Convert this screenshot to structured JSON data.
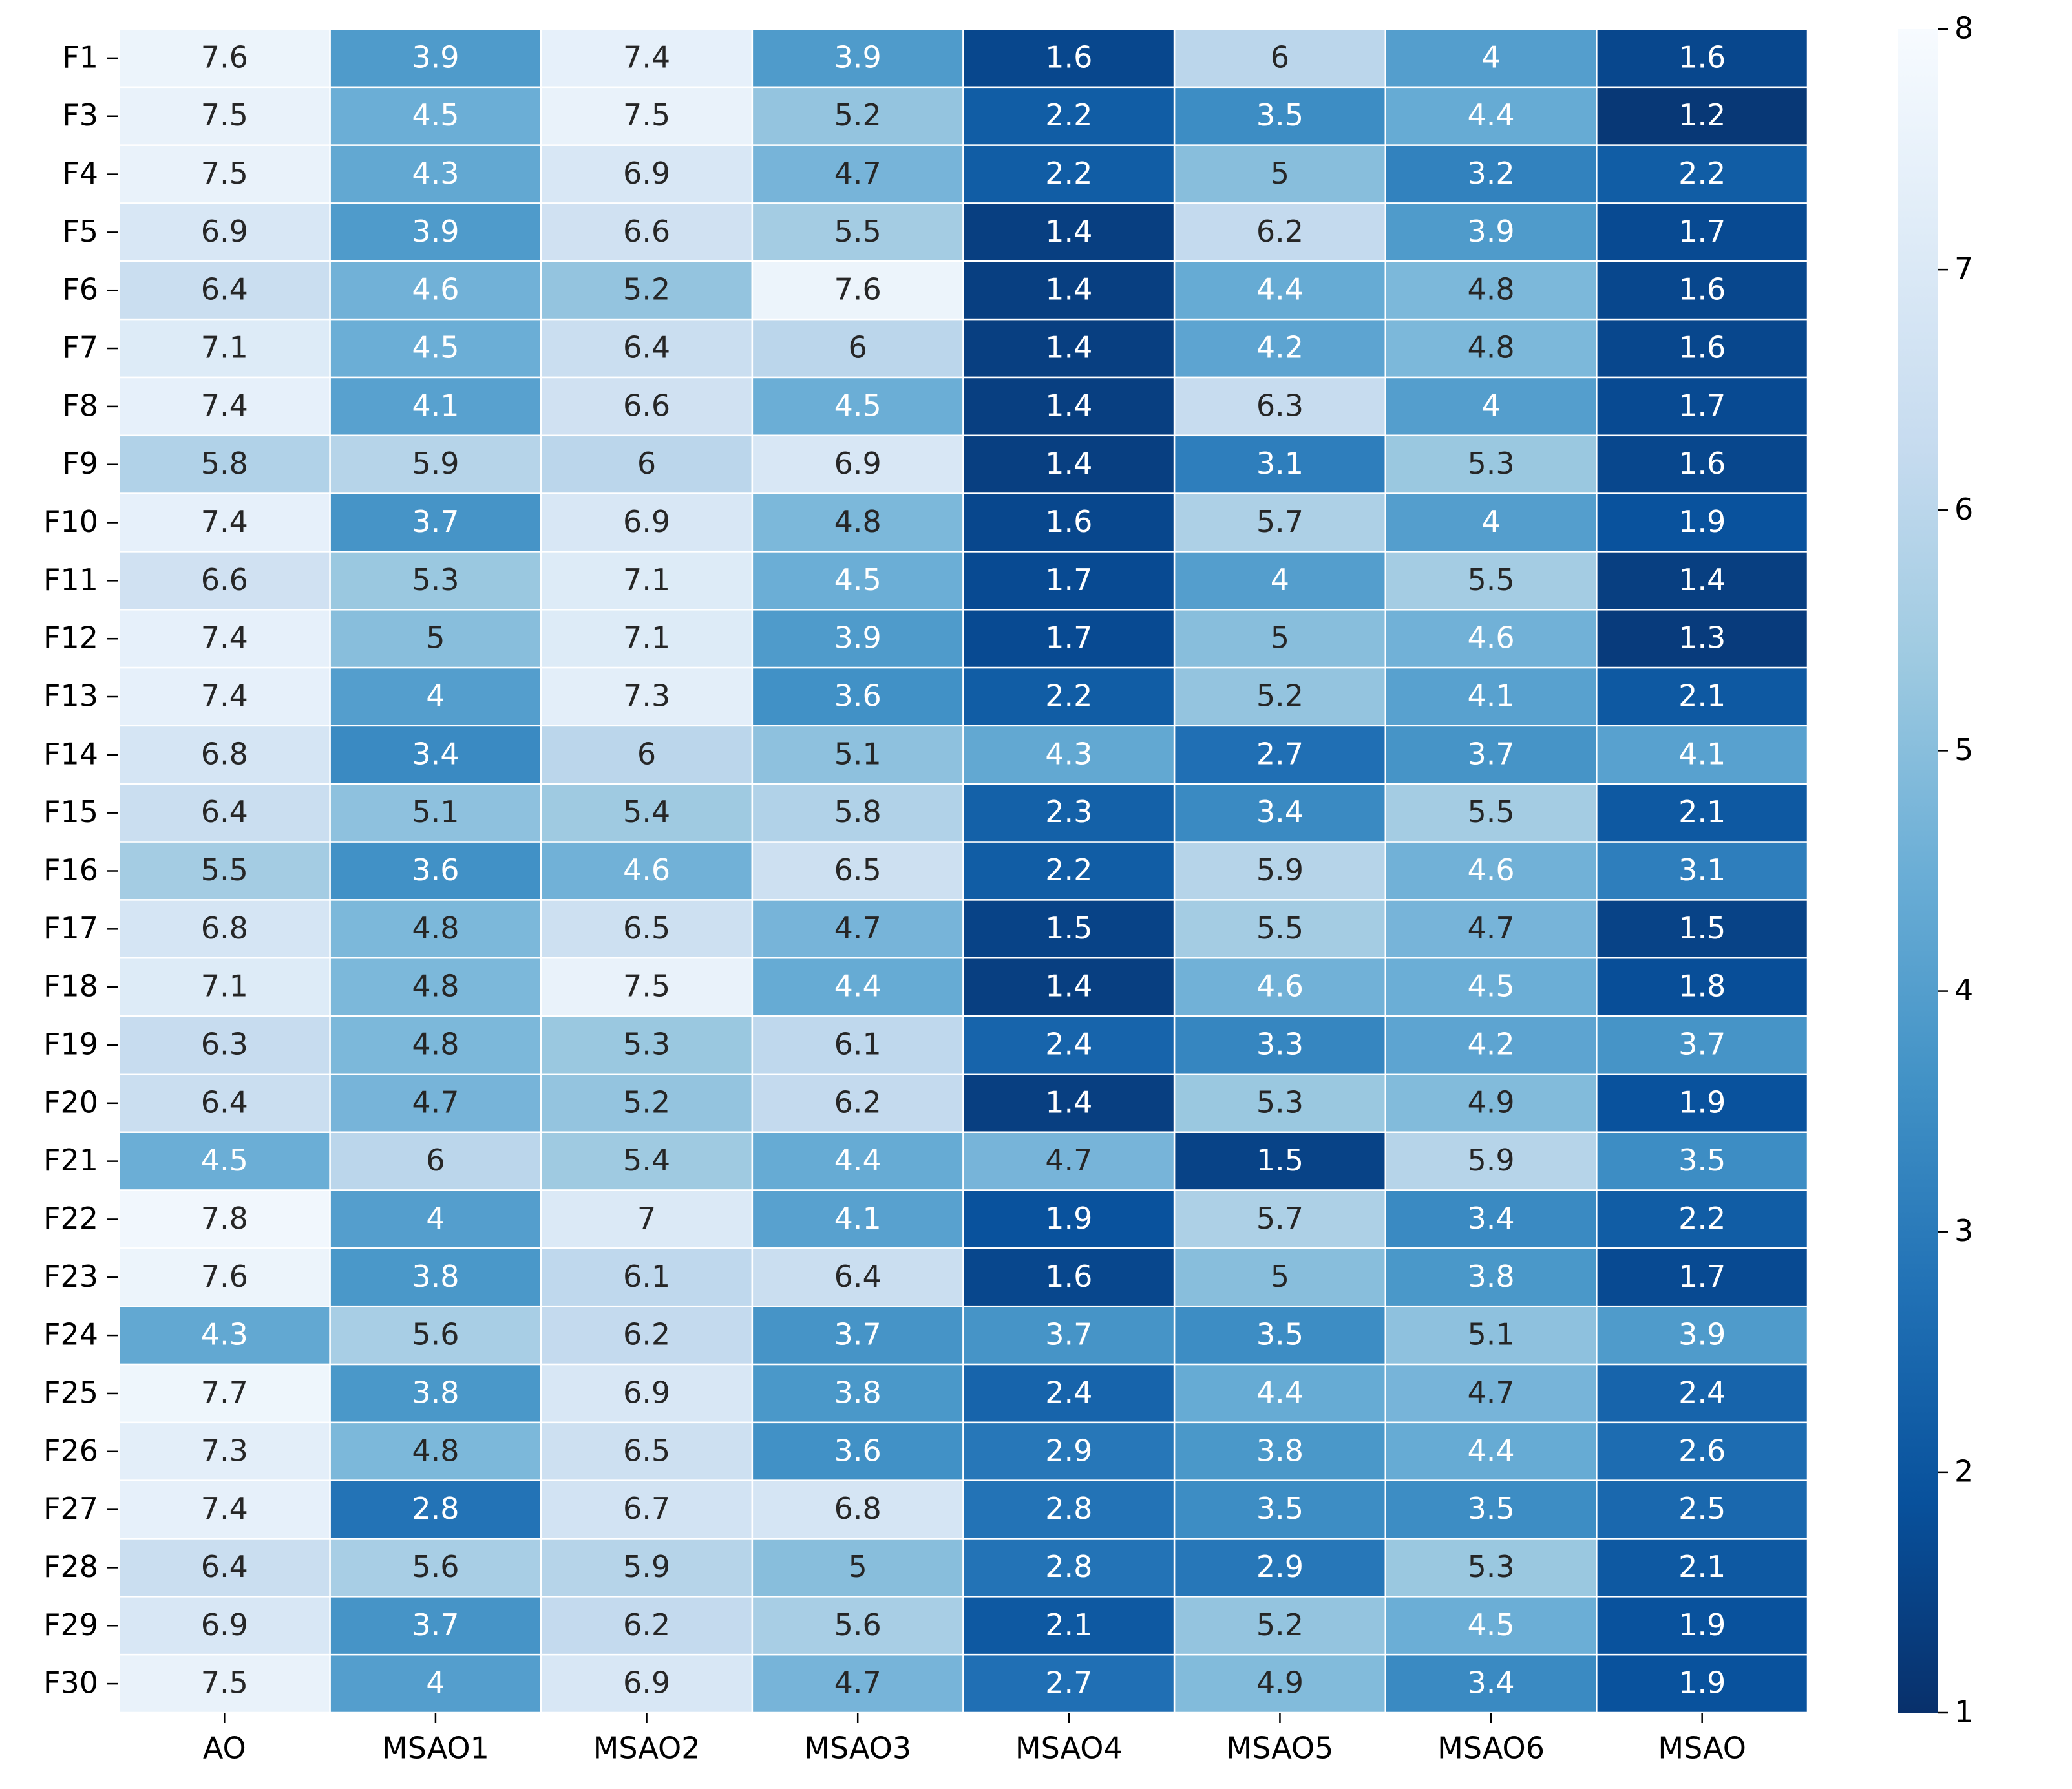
{
  "chart_data": {
    "type": "heatmap",
    "columns": [
      "AO",
      "MSAO1",
      "MSAO2",
      "MSAO3",
      "MSAO4",
      "MSAO5",
      "MSAO6",
      "MSAO"
    ],
    "rows": [
      "F1",
      "F3",
      "F4",
      "F5",
      "F6",
      "F7",
      "F8",
      "F9",
      "F10",
      "F11",
      "F12",
      "F13",
      "F14",
      "F15",
      "F16",
      "F17",
      "F18",
      "F19",
      "F20",
      "F21",
      "F22",
      "F23",
      "F24",
      "F25",
      "F26",
      "F27",
      "F28",
      "F29",
      "F30"
    ],
    "values": [
      [
        7.6,
        3.9,
        7.4,
        3.9,
        1.6,
        6,
        4,
        1.6
      ],
      [
        7.5,
        4.5,
        7.5,
        5.2,
        2.2,
        3.5,
        4.4,
        1.2
      ],
      [
        7.5,
        4.3,
        6.9,
        4.7,
        2.2,
        5,
        3.2,
        2.2
      ],
      [
        6.9,
        3.9,
        6.6,
        5.5,
        1.4,
        6.2,
        3.9,
        1.7
      ],
      [
        6.4,
        4.6,
        5.2,
        7.6,
        1.4,
        4.4,
        4.8,
        1.6
      ],
      [
        7.1,
        4.5,
        6.4,
        6,
        1.4,
        4.2,
        4.8,
        1.6
      ],
      [
        7.4,
        4.1,
        6.6,
        4.5,
        1.4,
        6.3,
        4,
        1.7
      ],
      [
        5.8,
        5.9,
        6,
        6.9,
        1.4,
        3.1,
        5.3,
        1.6
      ],
      [
        7.4,
        3.7,
        6.9,
        4.8,
        1.6,
        5.7,
        4,
        1.9
      ],
      [
        6.6,
        5.3,
        7.1,
        4.5,
        1.7,
        4,
        5.5,
        1.4
      ],
      [
        7.4,
        5,
        7.1,
        3.9,
        1.7,
        5,
        4.6,
        1.3
      ],
      [
        7.4,
        4,
        7.3,
        3.6,
        2.2,
        5.2,
        4.1,
        2.1
      ],
      [
        6.8,
        3.4,
        6,
        5.1,
        4.3,
        2.7,
        3.7,
        4.1
      ],
      [
        6.4,
        5.1,
        5.4,
        5.8,
        2.3,
        3.4,
        5.5,
        2.1
      ],
      [
        5.5,
        3.6,
        4.6,
        6.5,
        2.2,
        5.9,
        4.6,
        3.1
      ],
      [
        6.8,
        4.8,
        6.5,
        4.7,
        1.5,
        5.5,
        4.7,
        1.5
      ],
      [
        7.1,
        4.8,
        7.5,
        4.4,
        1.4,
        4.6,
        4.5,
        1.8
      ],
      [
        6.3,
        4.8,
        5.3,
        6.1,
        2.4,
        3.3,
        4.2,
        3.7
      ],
      [
        6.4,
        4.7,
        5.2,
        6.2,
        1.4,
        5.3,
        4.9,
        1.9
      ],
      [
        4.5,
        6,
        5.4,
        4.4,
        4.7,
        1.5,
        5.9,
        3.5
      ],
      [
        7.8,
        4,
        7,
        4.1,
        1.9,
        5.7,
        3.4,
        2.2
      ],
      [
        7.6,
        3.8,
        6.1,
        6.4,
        1.6,
        5,
        3.8,
        1.7
      ],
      [
        4.3,
        5.6,
        6.2,
        3.7,
        3.7,
        3.5,
        5.1,
        3.9
      ],
      [
        7.7,
        3.8,
        6.9,
        3.8,
        2.4,
        4.4,
        4.7,
        2.4
      ],
      [
        7.3,
        4.8,
        6.5,
        3.6,
        2.9,
        3.8,
        4.4,
        2.6
      ],
      [
        7.4,
        2.8,
        6.7,
        6.8,
        2.8,
        3.5,
        3.5,
        2.5
      ],
      [
        6.4,
        5.6,
        5.9,
        5,
        2.8,
        2.9,
        5.3,
        2.1
      ],
      [
        6.9,
        3.7,
        6.2,
        5.6,
        2.1,
        5.2,
        4.5,
        1.9
      ],
      [
        7.5,
        4,
        6.9,
        4.7,
        2.7,
        4.9,
        3.4,
        1.9
      ]
    ],
    "colorscale": [
      "#08306b",
      "#08519c",
      "#2171b5",
      "#4292c6",
      "#6baed6",
      "#9ecae1",
      "#c6dbef",
      "#deebf7",
      "#f7fbff"
    ],
    "clim": [
      1,
      8
    ],
    "cticks": [
      1,
      2,
      3,
      4,
      5,
      6,
      7,
      8
    ]
  }
}
